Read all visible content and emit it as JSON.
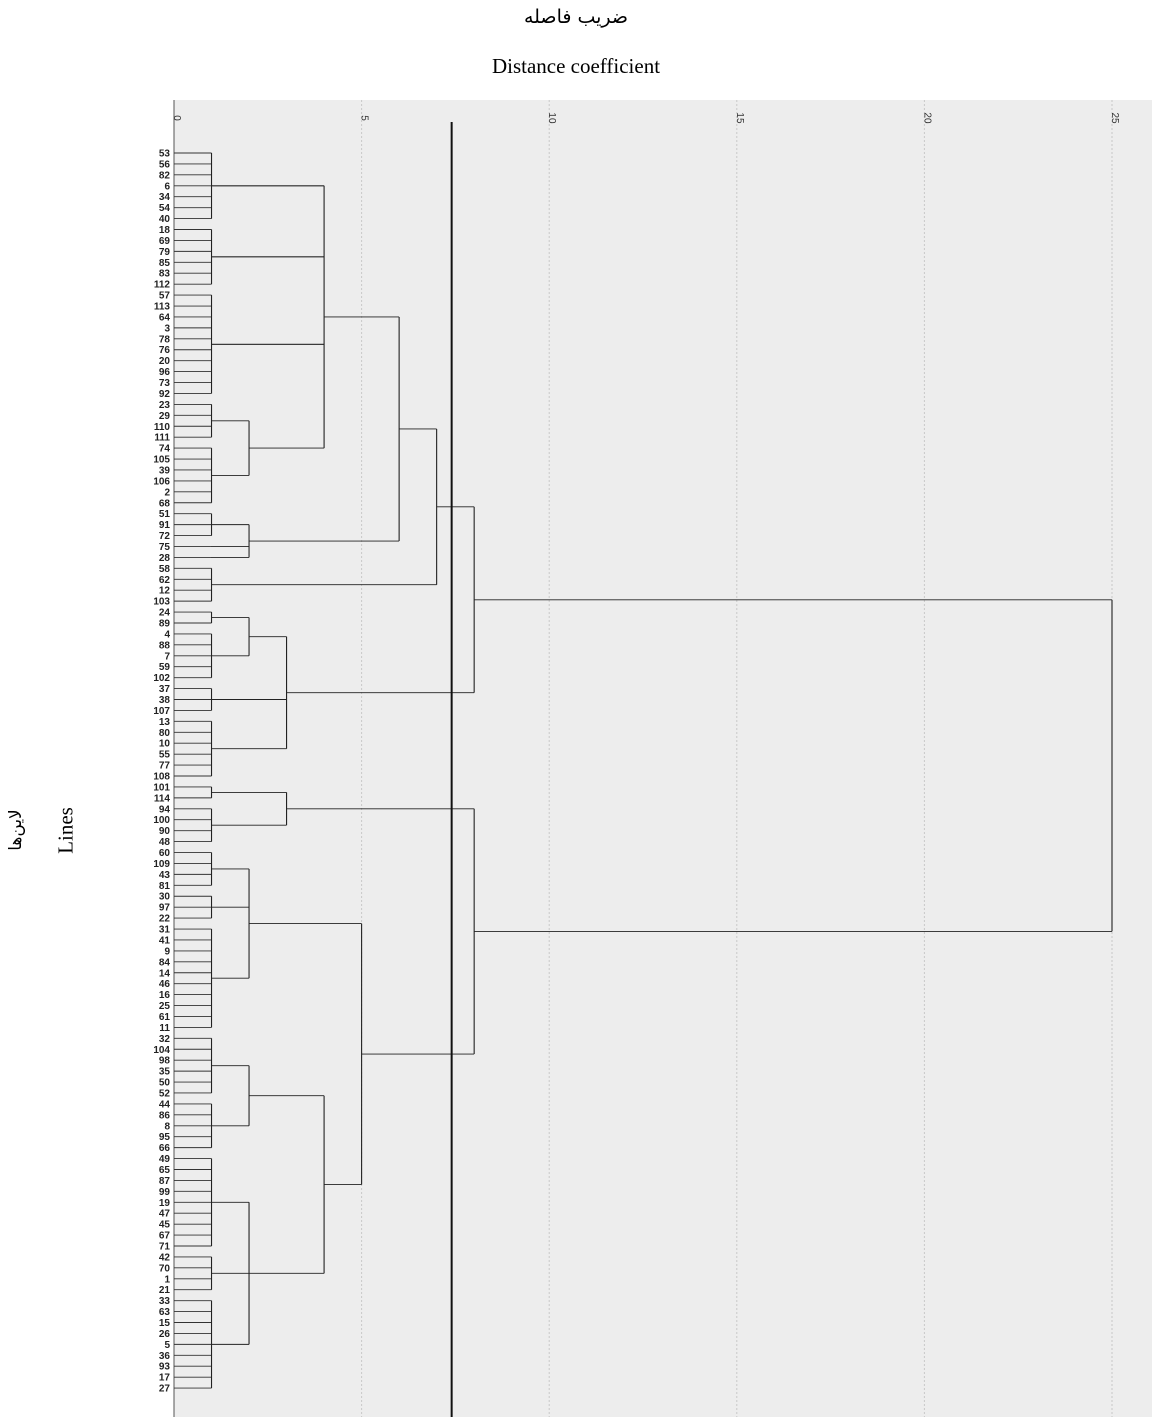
{
  "title_fa": "ضریب فاصله",
  "title_en": "Distance coefficient",
  "ylabel_fa": "لاین‌ها",
  "ylabel_en": "Lines",
  "chart_data": {
    "type": "dendrogram",
    "xlim": [
      0,
      25
    ],
    "x_ticks": [
      "0",
      "5",
      "10",
      "15",
      "20",
      "25"
    ],
    "cut_line": 7.4,
    "grid": true,
    "leaves": [
      "53",
      "56",
      "82",
      "6",
      "34",
      "54",
      "40",
      "18",
      "69",
      "79",
      "85",
      "83",
      "112",
      "57",
      "113",
      "64",
      "3",
      "78",
      "76",
      "20",
      "96",
      "73",
      "92",
      "23",
      "29",
      "110",
      "111",
      "74",
      "105",
      "39",
      "106",
      "2",
      "68",
      "51",
      "91",
      "72",
      "75",
      "28",
      "58",
      "62",
      "12",
      "103",
      "24",
      "89",
      "4",
      "88",
      "7",
      "59",
      "102",
      "37",
      "38",
      "107",
      "13",
      "80",
      "10",
      "55",
      "77",
      "108",
      "101",
      "114",
      "94",
      "100",
      "90",
      "48",
      "60",
      "109",
      "43",
      "81",
      "30",
      "97",
      "22",
      "31",
      "41",
      "9",
      "84",
      "14",
      "46",
      "16",
      "25",
      "61",
      "11",
      "32",
      "104",
      "98",
      "35",
      "50",
      "52",
      "44",
      "86",
      "8",
      "95",
      "66",
      "49",
      "65",
      "87",
      "99",
      "19",
      "47",
      "45",
      "67",
      "71",
      "42",
      "70",
      "1",
      "21",
      "33",
      "63",
      "15",
      "26",
      "5",
      "36",
      "93",
      "17",
      "27"
    ],
    "merges": [
      {
        "h": 1,
        "lo": 0,
        "hi": 6
      },
      {
        "h": 1,
        "lo": 7,
        "hi": 12
      },
      {
        "h": 1,
        "lo": 13,
        "hi": 22
      },
      {
        "h": 2,
        "lo": 0,
        "hi": 6
      },
      {
        "h": 2,
        "lo": 7,
        "hi": 12
      },
      {
        "h": 2,
        "lo": 13,
        "hi": 22
      },
      {
        "h": 1,
        "lo": 23,
        "hi": 26
      },
      {
        "h": 1,
        "lo": 27,
        "hi": 32
      },
      {
        "h": 2,
        "lo": 23,
        "hi": 32
      },
      {
        "h": 4,
        "lo": 0,
        "hi": 32
      },
      {
        "h": 1,
        "lo": 33,
        "hi": 35
      },
      {
        "h": 2,
        "lo": 33,
        "hi": 37
      },
      {
        "h": 6,
        "lo": 0,
        "hi": 37
      },
      {
        "h": 1,
        "lo": 38,
        "hi": 41
      },
      {
        "h": 7,
        "lo": 0,
        "hi": 41
      },
      {
        "h": 1,
        "lo": 42,
        "hi": 43
      },
      {
        "h": 1,
        "lo": 44,
        "hi": 48
      },
      {
        "h": 2,
        "lo": 42,
        "hi": 48
      },
      {
        "h": 1,
        "lo": 49,
        "hi": 51
      },
      {
        "h": 1,
        "lo": 52,
        "hi": 57
      },
      {
        "h": 3,
        "lo": 42,
        "hi": 57
      },
      {
        "h": 8,
        "lo": 0,
        "hi": 57
      },
      {
        "h": 1,
        "lo": 58,
        "hi": 59
      },
      {
        "h": 1,
        "lo": 60,
        "hi": 63
      },
      {
        "h": 3,
        "lo": 58,
        "hi": 63
      },
      {
        "h": 1,
        "lo": 64,
        "hi": 67
      },
      {
        "h": 1,
        "lo": 68,
        "hi": 70
      },
      {
        "h": 1,
        "lo": 71,
        "hi": 80
      },
      {
        "h": 2,
        "lo": 64,
        "hi": 80
      },
      {
        "h": 1,
        "lo": 81,
        "hi": 86
      },
      {
        "h": 1,
        "lo": 87,
        "hi": 91
      },
      {
        "h": 2,
        "lo": 81,
        "hi": 91
      },
      {
        "h": 1,
        "lo": 92,
        "hi": 100
      },
      {
        "h": 1,
        "lo": 101,
        "hi": 104
      },
      {
        "h": 1,
        "lo": 105,
        "hi": 113
      },
      {
        "h": 2,
        "lo": 92,
        "hi": 113
      },
      {
        "h": 4,
        "lo": 81,
        "hi": 113
      },
      {
        "h": 5,
        "lo": 64,
        "hi": 113
      },
      {
        "h": 8,
        "lo": 58,
        "hi": 113
      },
      {
        "h": 25,
        "lo": 0,
        "hi": 113
      }
    ]
  }
}
